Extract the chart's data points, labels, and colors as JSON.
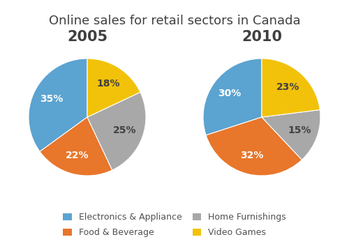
{
  "title": "Online sales for retail sectors in Canada",
  "title_fontsize": 13,
  "title_color": "#404040",
  "year_labels": [
    "2005",
    "2010"
  ],
  "year_fontsize": 15,
  "year_color": "#404040",
  "categories": [
    "Electronics & Appliance",
    "Food & Beverage",
    "Home Furnishings",
    "Video Games"
  ],
  "colors": [
    "#5BA3D0",
    "#E8762B",
    "#A8A8A8",
    "#F2C20A"
  ],
  "values_2005": [
    35,
    22,
    25,
    18
  ],
  "values_2010": [
    30,
    32,
    15,
    23
  ],
  "startangle": 90,
  "legend_labels_row1": [
    "Electronics & Appliance",
    "Food & Beverage"
  ],
  "legend_labels_row2": [
    "Home Furnishings",
    "Video Games"
  ],
  "legend_fontsize": 9,
  "pct_fontsize": 10,
  "pct_color_dark": [
    "Home Furnishings",
    "Video Games"
  ],
  "background_color": "#ffffff"
}
